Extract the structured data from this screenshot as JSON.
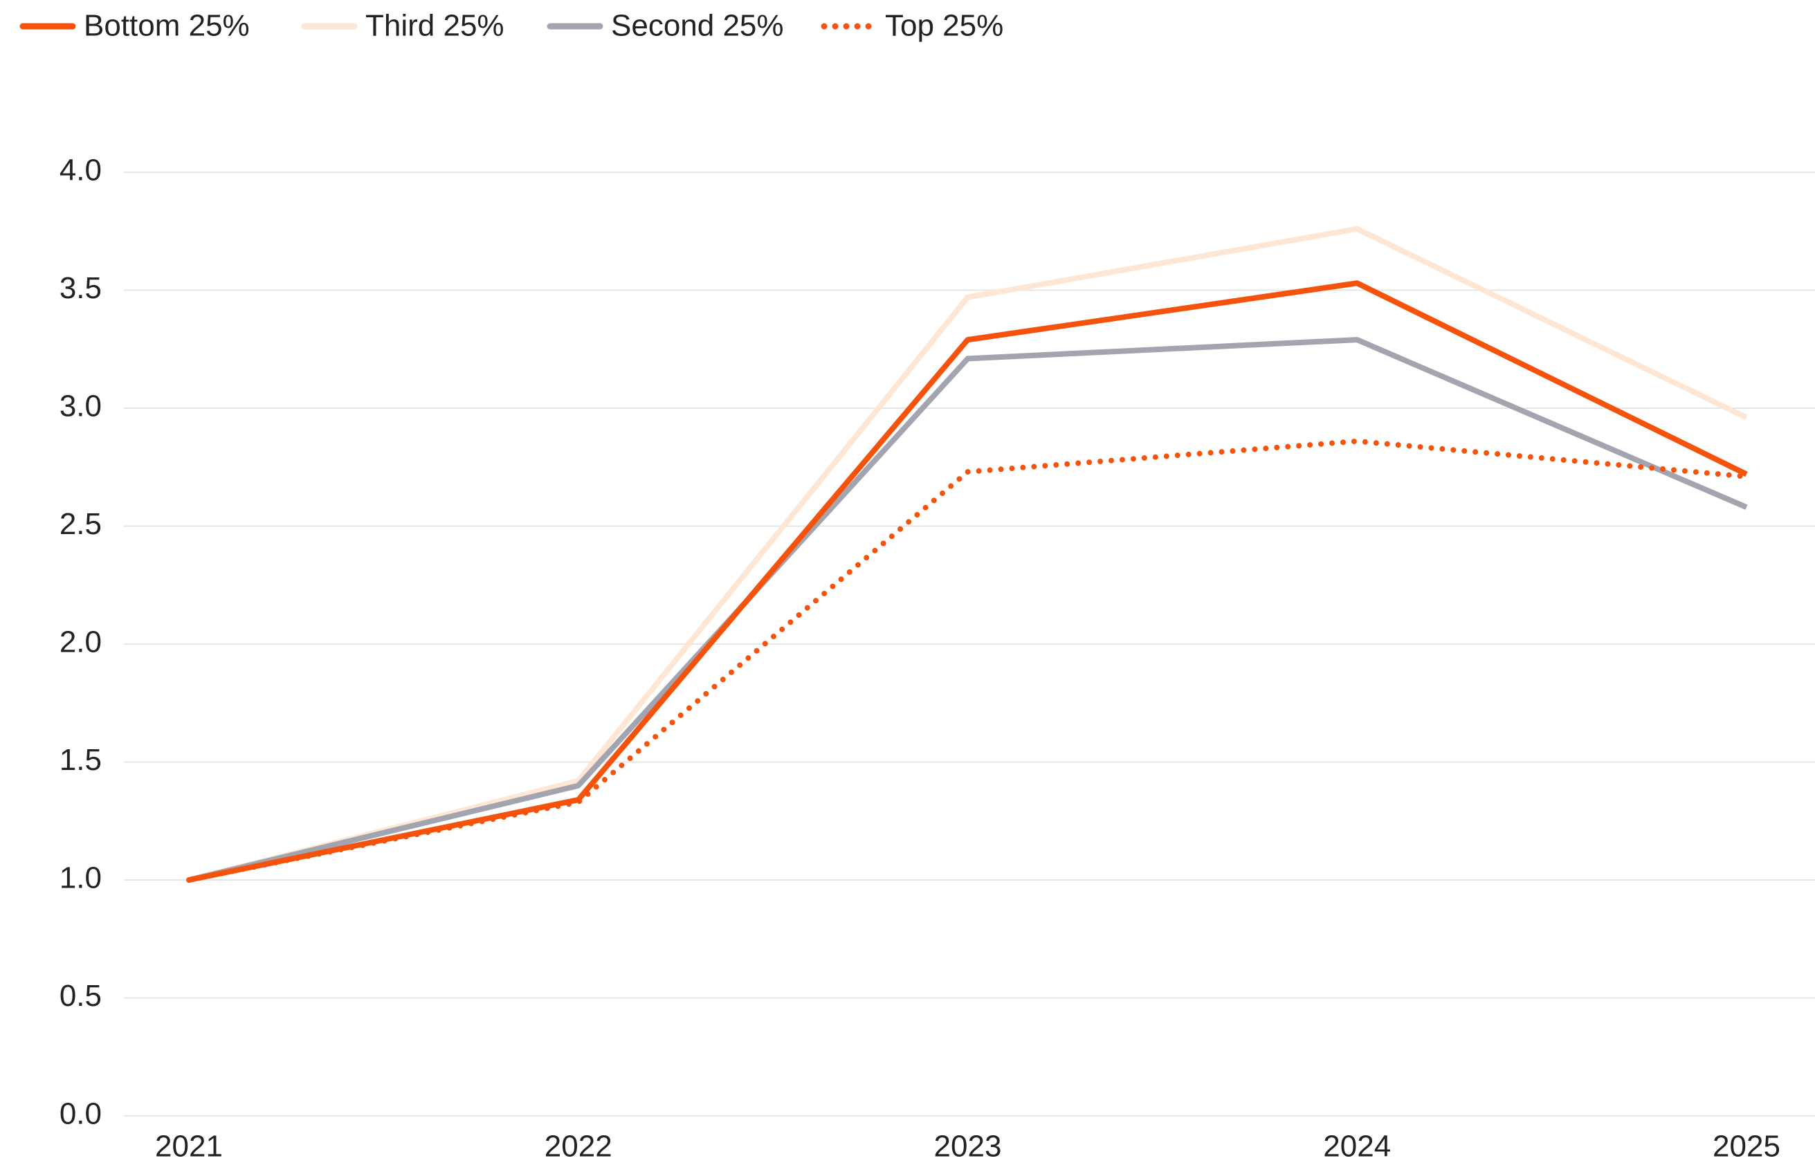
{
  "chart_data": {
    "type": "line",
    "categories": [
      "2021",
      "2022",
      "2023",
      "2024",
      "2025"
    ],
    "series": [
      {
        "name": "Bottom 25%",
        "color": "#f5520c",
        "style": "solid",
        "values": [
          1.0,
          1.34,
          3.29,
          3.53,
          2.72
        ]
      },
      {
        "name": "Third 25%",
        "color": "#fde6d3",
        "style": "solid",
        "values": [
          1.0,
          1.42,
          3.47,
          3.76,
          2.96
        ]
      },
      {
        "name": "Second 25%",
        "color": "#a2a5b0",
        "style": "solid",
        "values": [
          1.0,
          1.4,
          3.21,
          3.29,
          2.58
        ]
      },
      {
        "name": "Top 25%",
        "color": "#f5520c",
        "style": "dotted",
        "values": [
          1.0,
          1.33,
          2.73,
          2.86,
          2.71
        ]
      }
    ],
    "ylim": [
      0,
      4
    ],
    "yticks": [
      {
        "value": 0,
        "label": "0.0"
      },
      {
        "value": 0.5,
        "label": "0.5"
      },
      {
        "value": 1,
        "label": "1.0"
      },
      {
        "value": 1.5,
        "label": "1.5"
      },
      {
        "value": 2,
        "label": "2.0"
      },
      {
        "value": 2.5,
        "label": "2.5"
      },
      {
        "value": 3,
        "label": "3.0"
      },
      {
        "value": 3.5,
        "label": "3.5"
      },
      {
        "value": 4,
        "label": "4.0"
      }
    ],
    "grid": true,
    "legend": "top-left"
  }
}
